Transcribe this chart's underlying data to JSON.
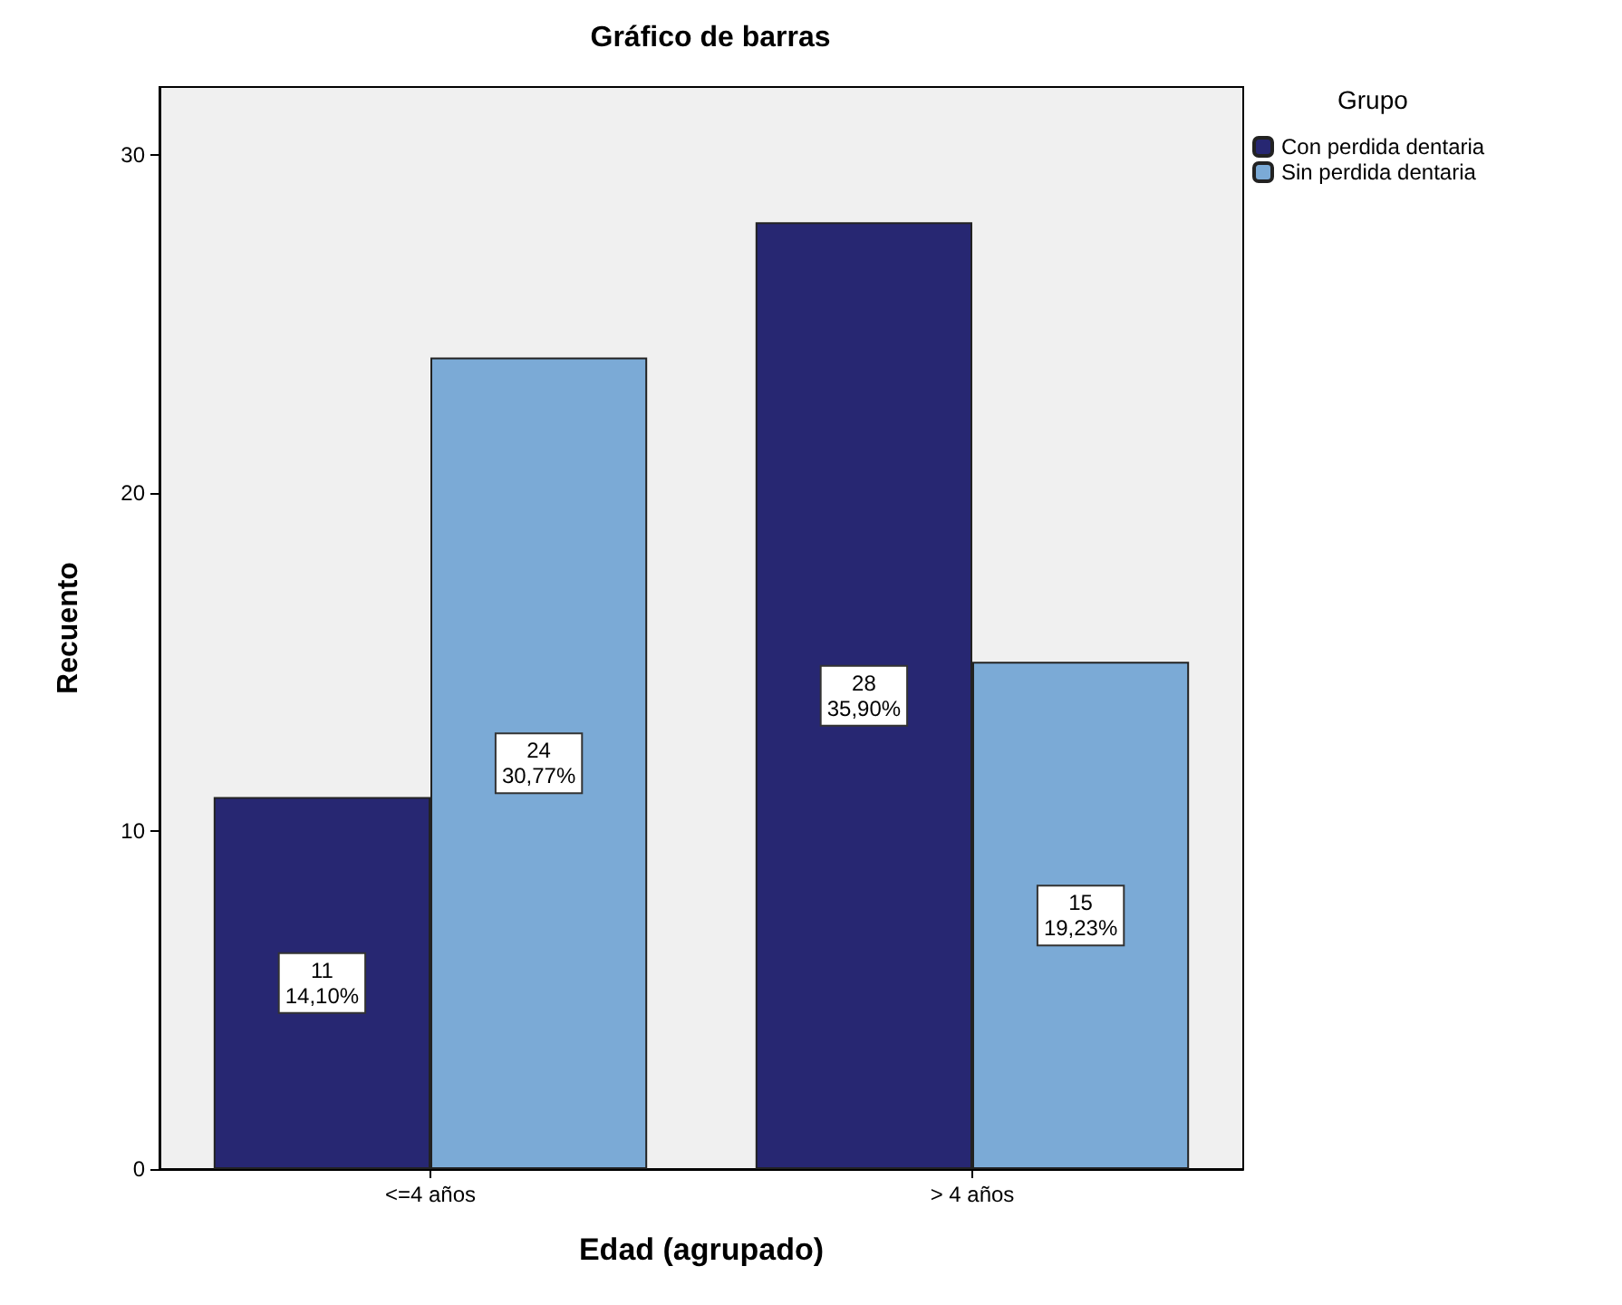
{
  "chart_data": {
    "type": "bar",
    "title": "Gráfico de barras",
    "xlabel": "Edad (agrupado)",
    "ylabel": "Recuento",
    "legend_title": "Grupo",
    "categories": [
      "<=4 años",
      "> 4 años"
    ],
    "series": [
      {
        "name": "Con perdida dentaria",
        "color": "#272772",
        "values": [
          11,
          28
        ],
        "value_labels": [
          "11\n14,10%",
          "28\n35,90%"
        ]
      },
      {
        "name": "Sin perdida dentaria",
        "color": "#7baad6",
        "values": [
          24,
          15
        ],
        "value_labels": [
          "24\n30,77%",
          "15\n19,23%"
        ]
      }
    ],
    "ylim": [
      0,
      32
    ],
    "yticks": [
      0,
      10,
      20,
      30
    ],
    "grid": false,
    "legend": "top right"
  }
}
